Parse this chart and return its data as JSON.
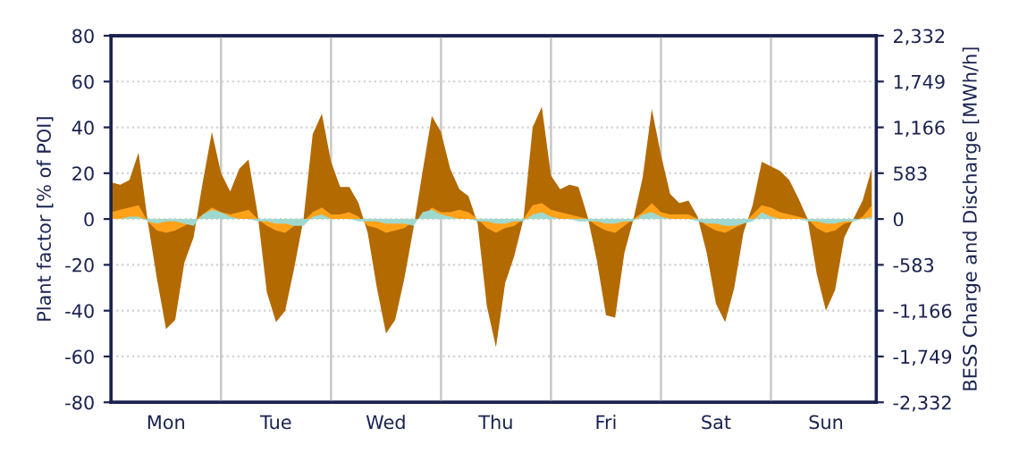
{
  "chart_data": {
    "type": "area",
    "ylabel": "Plant factor [% of POI]",
    "y2label": "BESS Charge and Discharge [MWh/h]",
    "categories": [
      null,
      null,
      null,
      null,
      null,
      null,
      "Mon",
      null,
      null,
      null,
      null,
      null,
      null,
      null,
      null,
      null,
      null,
      null,
      "Tue",
      null,
      null,
      null,
      null,
      null,
      null,
      null,
      null,
      null,
      null,
      null,
      "Wed",
      null,
      null,
      null,
      null,
      null,
      null,
      null,
      null,
      null,
      null,
      null,
      "Thu",
      null,
      null,
      null,
      null,
      null,
      null,
      null,
      null,
      null,
      null,
      null,
      "Fri",
      null,
      null,
      null,
      null,
      null,
      null,
      null,
      null,
      null,
      null,
      null,
      "Sat",
      null,
      null,
      null,
      null,
      null,
      null,
      null,
      null,
      null,
      null,
      null,
      "Sun",
      null,
      null,
      null,
      null,
      null
    ],
    "ylim": [
      -80,
      80
    ],
    "yticks": [
      -80,
      -60,
      -40,
      -20,
      0,
      20,
      40,
      60,
      80
    ],
    "y2lim": [
      -2332,
      2332
    ],
    "y2ticks": [
      {
        "value": -2332,
        "label": "-2,332"
      },
      {
        "value": -1749,
        "label": "-1,749"
      },
      {
        "value": -1166,
        "label": "-1,166"
      },
      -583,
      0,
      583,
      {
        "value": 1166,
        "label": "1,166"
      },
      {
        "value": 1749,
        "label": "1,749"
      },
      {
        "value": 2332,
        "label": "2,332"
      }
    ],
    "grid": true,
    "series": [
      {
        "color": "#b36a00",
        "values": [
          16,
          15,
          17,
          29,
          -1,
          -26,
          -48,
          -44,
          -19,
          -8,
          16,
          38,
          20,
          12,
          22,
          26,
          2,
          -32,
          -45,
          -40,
          -21,
          0,
          37,
          46,
          25,
          14,
          14,
          7,
          -6,
          -30,
          -50,
          -44,
          -26,
          -4,
          21,
          45,
          38,
          22,
          13,
          10,
          -2,
          -38,
          -56,
          -28,
          -16,
          0,
          40,
          49,
          19,
          13,
          15,
          14,
          1,
          -18,
          -42,
          -43,
          -15,
          0,
          18,
          48,
          28,
          11,
          7,
          8,
          1,
          -15,
          -37,
          -45,
          -30,
          -6,
          6,
          25,
          23,
          21,
          17,
          9,
          0,
          -24,
          -40,
          -31,
          -8,
          0,
          8,
          22
        ]
      },
      {
        "color": "#ffa21a",
        "values": [
          3,
          4,
          5,
          6,
          -1,
          -5,
          -6,
          -5,
          -3,
          -1,
          2,
          5,
          3,
          2,
          3,
          4,
          0,
          -3,
          -5,
          -6,
          -3,
          -1,
          3,
          5,
          2,
          2,
          3,
          1,
          -3,
          -4,
          -6,
          -5,
          -4,
          -1,
          1,
          5,
          3,
          3,
          4,
          3,
          0,
          -4,
          -6,
          -4,
          -3,
          0,
          6,
          7,
          4,
          3,
          2,
          1,
          0,
          -3,
          -5,
          -6,
          -3,
          0,
          3,
          7,
          3,
          2,
          2,
          2,
          0,
          -3,
          -5,
          -6,
          -4,
          -2,
          2,
          6,
          5,
          3,
          2,
          1,
          0,
          -4,
          -6,
          -5,
          -2,
          -1,
          1,
          6
        ]
      },
      {
        "color": "#9fd8cf",
        "values": [
          0,
          0,
          1,
          1,
          -1,
          -2,
          -1,
          -1,
          -2,
          -3,
          2,
          4,
          3,
          1,
          0,
          0,
          -1,
          -1,
          -2,
          -2,
          -3,
          -3,
          1,
          2,
          0,
          0,
          0,
          -1,
          -1,
          -1,
          -2,
          -2,
          -2,
          -3,
          3,
          4,
          2,
          1,
          0,
          0,
          -1,
          -1,
          -2,
          -2,
          -1,
          -1,
          2,
          3,
          1,
          0,
          0,
          -1,
          -1,
          -1,
          -2,
          -2,
          -1,
          -1,
          2,
          3,
          1,
          0,
          0,
          0,
          -1,
          -2,
          -2,
          -3,
          -3,
          -2,
          -1,
          3,
          1,
          0,
          0,
          0,
          -1,
          -1,
          -2,
          -2,
          -1,
          -1,
          0,
          1
        ]
      }
    ]
  }
}
